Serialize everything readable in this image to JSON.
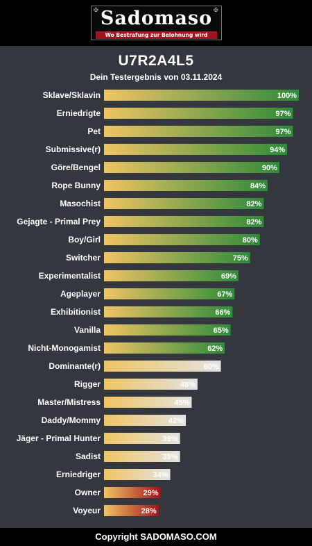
{
  "header": {
    "logo_title": "Sadomaso",
    "logo_tagline": "Wo Bestrafung zur Belohnung wird"
  },
  "page": {
    "title": "U7R2A4L5",
    "subtitle": "Dein Testergebnis von 03.11.2024"
  },
  "colors": {
    "background": "#34373e",
    "bar_start": "#f0c464",
    "high": "#2e8b3a",
    "mid": "#e3e3e3",
    "low": "#a3141b"
  },
  "chart_data": {
    "type": "bar",
    "orientation": "horizontal",
    "categories": [
      "Sklave/Sklavin",
      "Erniedrigte",
      "Pet",
      "Submissive(r)",
      "Göre/Bengel",
      "Rope Bunny",
      "Masochist",
      "Gejagte - Primal Prey",
      "Boy/Girl",
      "Switcher",
      "Experimentalist",
      "Ageplayer",
      "Exhibitionist",
      "Vanilla",
      "Nicht-Monogamist",
      "Dominante(r)",
      "Rigger",
      "Master/Mistress",
      "Daddy/Mommy",
      "Jäger - Primal Hunter",
      "Sadist",
      "Erniedriger",
      "Owner",
      "Voyeur"
    ],
    "values": [
      100,
      97,
      97,
      94,
      90,
      84,
      82,
      82,
      80,
      75,
      69,
      67,
      66,
      65,
      62,
      60,
      48,
      45,
      42,
      39,
      39,
      34,
      29,
      28
    ],
    "value_suffix": "%",
    "xlim": [
      0,
      100
    ]
  },
  "footer": {
    "text": "Copyright SADOMASO.COM"
  }
}
